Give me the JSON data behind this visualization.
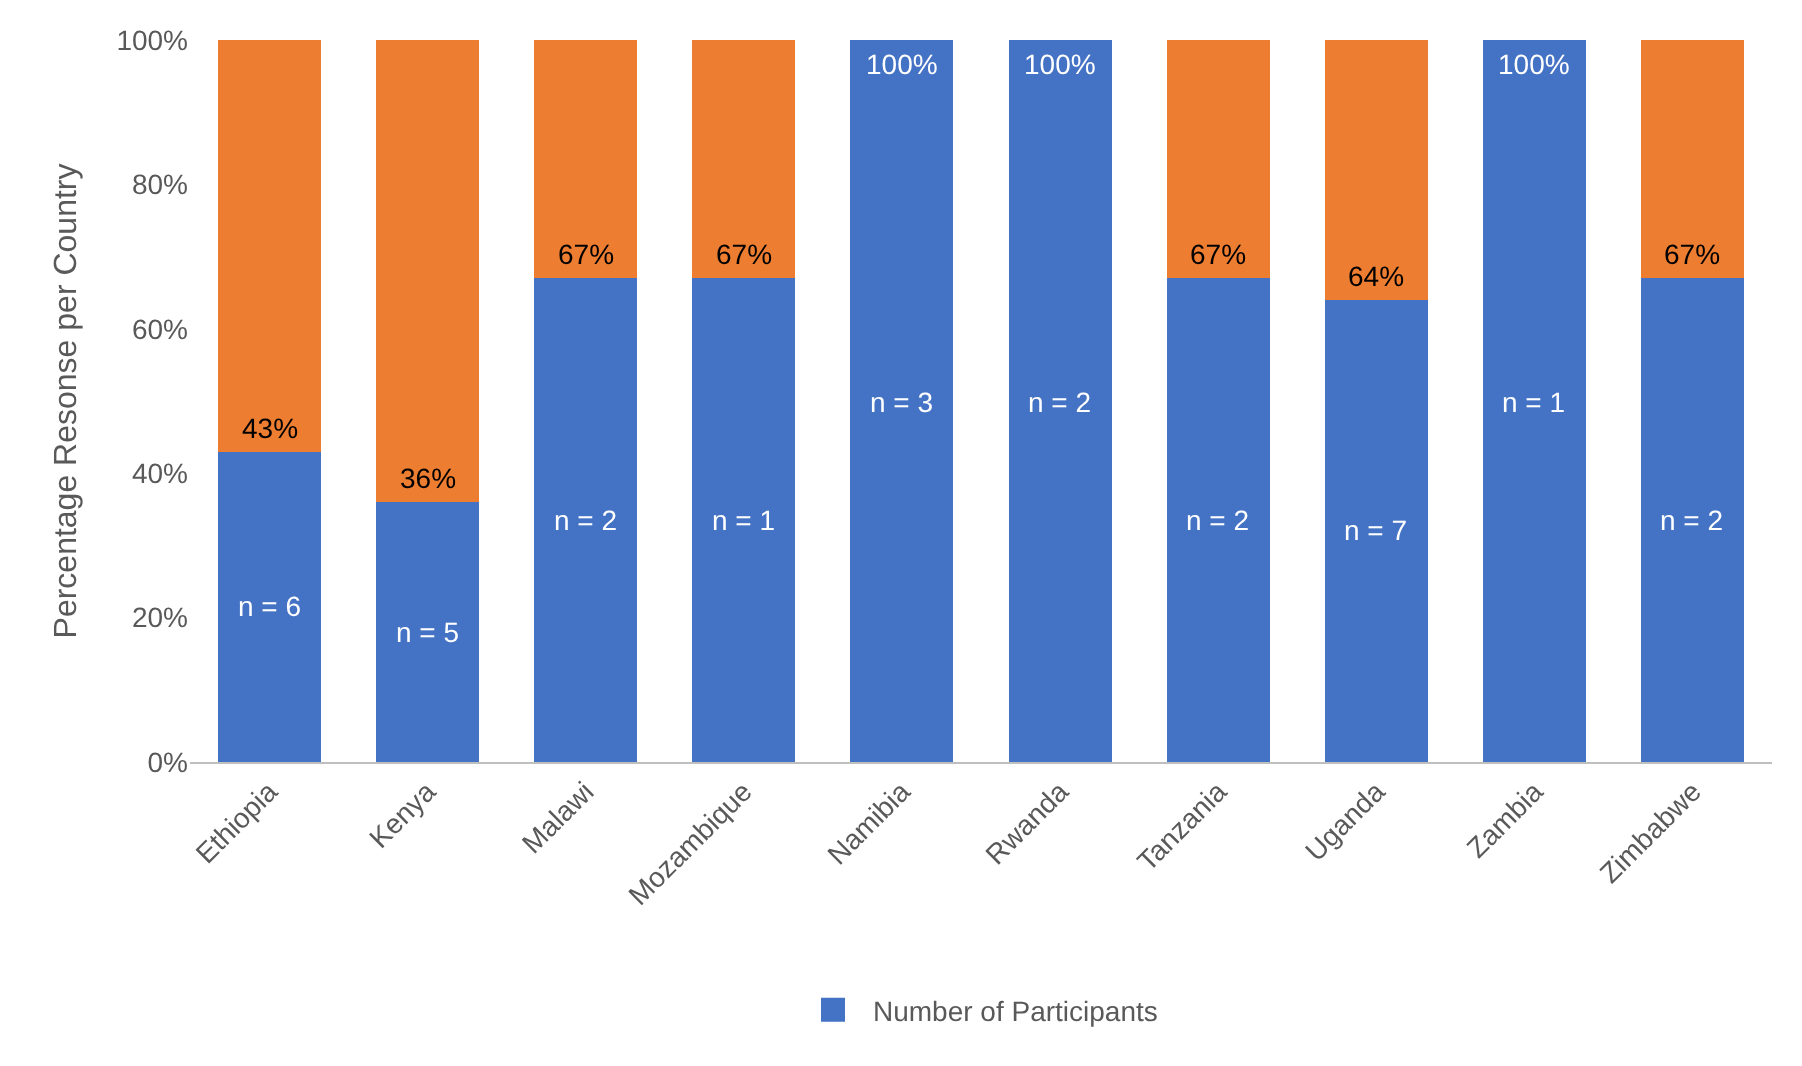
{
  "chart_data": {
    "type": "bar",
    "stacked": true,
    "ylabel": "Percentage Resonse per Country",
    "categories": [
      "Ethiopia",
      "Kenya",
      "Malawi",
      "Mozambique",
      "Namibia",
      "Rwanda",
      "Tanzania",
      "Uganda",
      "Zambia",
      "Zimbabwe"
    ],
    "series": [
      {
        "name": "Number of Participants",
        "color": "#4472c4",
        "values": [
          43,
          36,
          67,
          67,
          100,
          100,
          67,
          64,
          100,
          67
        ],
        "value_labels": [
          "43%",
          "36%",
          "67%",
          "67%",
          "100%",
          "100%",
          "67%",
          "64%",
          "100%",
          "67%"
        ]
      },
      {
        "color": "#ed7d31",
        "values": [
          57,
          64,
          33,
          33,
          0,
          0,
          33,
          36,
          0,
          33
        ]
      }
    ],
    "annotations": [
      "n = 6",
      "n = 5",
      "n = 2",
      "n = 1",
      "n = 3",
      "n = 2",
      "n = 2",
      "n = 7",
      "n = 1",
      "n = 2"
    ],
    "ylim": [
      0,
      100
    ],
    "yticks": [
      {
        "value": 0,
        "label": "0%"
      },
      {
        "value": 20,
        "label": "20%"
      },
      {
        "value": 40,
        "label": "40%"
      },
      {
        "value": 60,
        "label": "60%"
      },
      {
        "value": 80,
        "label": "80%"
      },
      {
        "value": 100,
        "label": "100%"
      }
    ],
    "grid": false,
    "legend": "bottom"
  }
}
